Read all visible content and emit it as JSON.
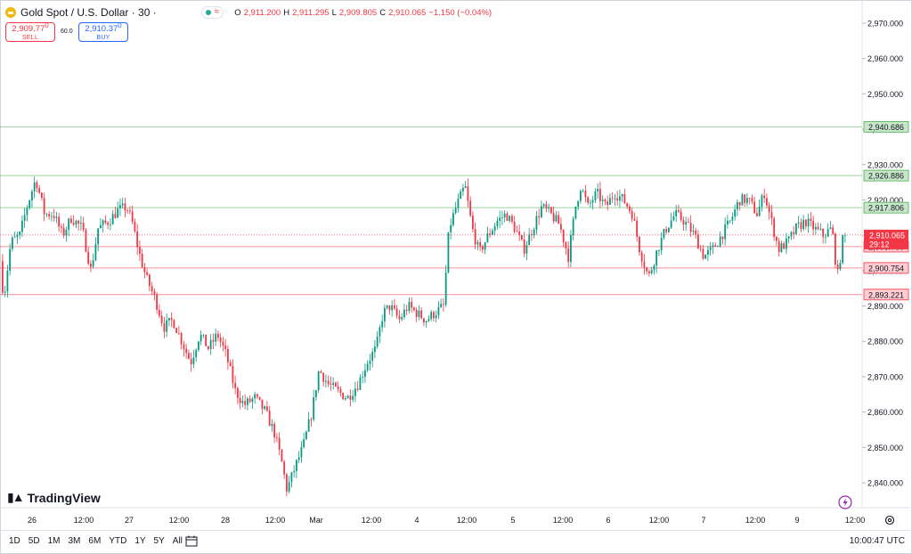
{
  "header": {
    "title": "Gold Spot / U.S. Dollar · 30 ·",
    "ohlc": [
      {
        "k": "O",
        "v": "2,911.200"
      },
      {
        "k": "H",
        "v": "2,911.295"
      },
      {
        "k": "L",
        "v": "2,909.805"
      },
      {
        "k": "C",
        "v": "2,910.065"
      }
    ],
    "change": "−1.150 (−0.04%)"
  },
  "trade": {
    "sell_price": "2,909.77",
    "sell_sup": "0",
    "sell_label": "SELL",
    "buy_price": "2,910.37",
    "buy_sup": "0",
    "buy_label": "BUY",
    "spread": "60.0"
  },
  "branding": {
    "name": "TradingView"
  },
  "bottom": {
    "ranges": [
      "1D",
      "5D",
      "1M",
      "3M",
      "6M",
      "YTD",
      "1Y",
      "5Y",
      "All"
    ],
    "clock": "10:00:47 UTC"
  },
  "colors": {
    "up": "#089981",
    "down": "#f23645",
    "support": "#4caf50",
    "resistance": "#f23645"
  },
  "chart_data": {
    "type": "candlestick",
    "y_ticks": [
      "2,840.000",
      "2,850.000",
      "2,860.000",
      "2,870.000",
      "2,880.000",
      "2,890.000",
      "2,900.000",
      "2,910.000",
      "2,920.000",
      "2,930.000",
      "2,940.000",
      "2,950.000",
      "2,960.000",
      "2,970.000"
    ],
    "ylim": [
      2835,
      2975
    ],
    "x_ticks": [
      "26",
      "12:00",
      "27",
      "12:00",
      "28",
      "12:00",
      "Mar",
      "12:00",
      "4",
      "12:00",
      "5",
      "12:00",
      "6",
      "12:00",
      "7",
      "12:00",
      "9",
      "12:00"
    ],
    "price_lines": [
      {
        "label": "2,940.686",
        "value": 2940.686,
        "kind": "support"
      },
      {
        "label": "2,926.886",
        "value": 2926.886,
        "kind": "support"
      },
      {
        "label": "2,917.806",
        "value": 2917.806,
        "kind": "support"
      },
      {
        "label": "2,906.780",
        "value": 2906.78,
        "kind": "resistance"
      },
      {
        "label": "2,900.754",
        "value": 2900.754,
        "kind": "resistance"
      },
      {
        "label": "2,893.221",
        "value": 2893.221,
        "kind": "resistance"
      }
    ],
    "last_price": {
      "label": "2,910.065",
      "value": 2910.065,
      "countdown": "29:12"
    },
    "path": [
      [
        0,
        2908
      ],
      [
        6,
        2892
      ],
      [
        14,
        2908
      ],
      [
        24,
        2910
      ],
      [
        32,
        2918
      ],
      [
        42,
        2926
      ],
      [
        52,
        2916
      ],
      [
        62,
        2916
      ],
      [
        72,
        2910
      ],
      [
        82,
        2915
      ],
      [
        94,
        2912
      ],
      [
        104,
        2900
      ],
      [
        112,
        2912
      ],
      [
        124,
        2914
      ],
      [
        134,
        2917
      ],
      [
        144,
        2918
      ],
      [
        150,
        2914
      ],
      [
        158,
        2905
      ],
      [
        166,
        2898
      ],
      [
        176,
        2892
      ],
      [
        186,
        2884
      ],
      [
        196,
        2886
      ],
      [
        206,
        2880
      ],
      [
        216,
        2874
      ],
      [
        226,
        2882
      ],
      [
        236,
        2878
      ],
      [
        246,
        2882
      ],
      [
        256,
        2876
      ],
      [
        266,
        2866
      ],
      [
        276,
        2862
      ],
      [
        288,
        2864
      ],
      [
        300,
        2860
      ],
      [
        310,
        2854
      ],
      [
        318,
        2846
      ],
      [
        324,
        2838
      ],
      [
        334,
        2845
      ],
      [
        342,
        2850
      ],
      [
        352,
        2860
      ],
      [
        360,
        2872
      ],
      [
        370,
        2868
      ],
      [
        380,
        2866
      ],
      [
        392,
        2864
      ],
      [
        404,
        2868
      ],
      [
        414,
        2874
      ],
      [
        424,
        2878
      ],
      [
        432,
        2888
      ],
      [
        440,
        2890
      ],
      [
        450,
        2886
      ],
      [
        460,
        2890
      ],
      [
        470,
        2888
      ],
      [
        480,
        2886
      ],
      [
        490,
        2888
      ],
      [
        500,
        2890
      ],
      [
        506,
        2912
      ],
      [
        514,
        2918
      ],
      [
        524,
        2924
      ],
      [
        532,
        2912
      ],
      [
        540,
        2905
      ],
      [
        550,
        2910
      ],
      [
        560,
        2914
      ],
      [
        570,
        2916
      ],
      [
        580,
        2912
      ],
      [
        590,
        2906
      ],
      [
        600,
        2912
      ],
      [
        610,
        2918
      ],
      [
        620,
        2916
      ],
      [
        630,
        2913
      ],
      [
        640,
        2904
      ],
      [
        648,
        2918
      ],
      [
        654,
        2924
      ],
      [
        662,
        2918
      ],
      [
        672,
        2922
      ],
      [
        682,
        2918
      ],
      [
        692,
        2922
      ],
      [
        702,
        2920
      ],
      [
        712,
        2916
      ],
      [
        720,
        2906
      ],
      [
        730,
        2898
      ],
      [
        740,
        2906
      ],
      [
        750,
        2912
      ],
      [
        760,
        2916
      ],
      [
        770,
        2914
      ],
      [
        782,
        2910
      ],
      [
        792,
        2904
      ],
      [
        802,
        2906
      ],
      [
        812,
        2910
      ],
      [
        822,
        2914
      ],
      [
        832,
        2920
      ],
      [
        842,
        2920
      ],
      [
        852,
        2916
      ],
      [
        860,
        2922
      ],
      [
        868,
        2914
      ],
      [
        876,
        2906
      ],
      [
        886,
        2908
      ],
      [
        896,
        2912
      ],
      [
        906,
        2914
      ],
      [
        916,
        2912
      ],
      [
        926,
        2910
      ],
      [
        936,
        2912
      ],
      [
        942,
        2898
      ],
      [
        950,
        2912
      ],
      [
        952,
        2910.065
      ]
    ]
  }
}
